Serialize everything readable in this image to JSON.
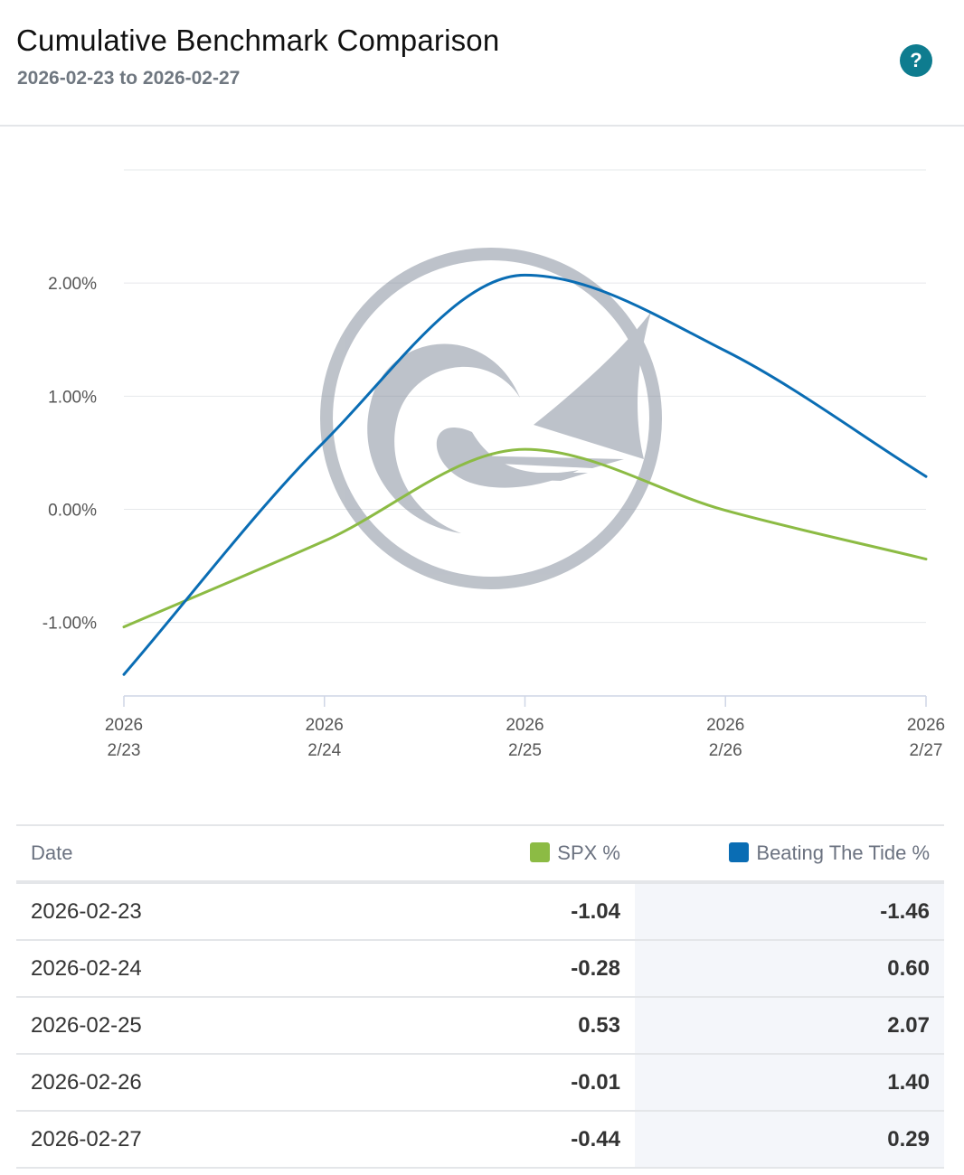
{
  "header": {
    "title": "Cumulative Benchmark Comparison",
    "subtitle": "2026-02-23 to 2026-02-27",
    "help_label": "?"
  },
  "colors": {
    "spx": "#8cbb44",
    "beating_the_tide": "#0a6db4",
    "help_button": "#0e7c8f"
  },
  "chart_data": {
    "type": "line",
    "x": [
      "2026-02-23",
      "2026-02-24",
      "2026-02-25",
      "2026-02-26",
      "2026-02-27"
    ],
    "x_tick_labels": [
      [
        "2026",
        "2/23"
      ],
      [
        "2026",
        "2/24"
      ],
      [
        "2026",
        "2/25"
      ],
      [
        "2026",
        "2/26"
      ],
      [
        "2026",
        "2/27"
      ]
    ],
    "y_ticks": [
      -1,
      0,
      1,
      2
    ],
    "y_tick_labels": [
      "-1.00%",
      "0.00%",
      "1.00%",
      "2.00%"
    ],
    "ylim": [
      -1.65,
      3.0
    ],
    "grid": true,
    "watermark": "sailboat-wave-logo",
    "series": [
      {
        "name": "SPX %",
        "color": "#8cbb44",
        "values": [
          -1.04,
          -0.28,
          0.53,
          -0.01,
          -0.44
        ]
      },
      {
        "name": "Beating The Tide %",
        "color": "#0a6db4",
        "values": [
          -1.46,
          0.6,
          2.07,
          1.4,
          0.29
        ]
      }
    ]
  },
  "table": {
    "headers": {
      "date": "Date",
      "spx": "SPX %",
      "btt": "Beating The Tide %"
    },
    "rows": [
      {
        "date": "2026-02-23",
        "spx": "-1.04",
        "btt": "-1.46"
      },
      {
        "date": "2026-02-24",
        "spx": "-0.28",
        "btt": "0.60"
      },
      {
        "date": "2026-02-25",
        "spx": "0.53",
        "btt": "2.07"
      },
      {
        "date": "2026-02-26",
        "spx": "-0.01",
        "btt": "1.40"
      },
      {
        "date": "2026-02-27",
        "spx": "-0.44",
        "btt": "0.29"
      }
    ]
  }
}
